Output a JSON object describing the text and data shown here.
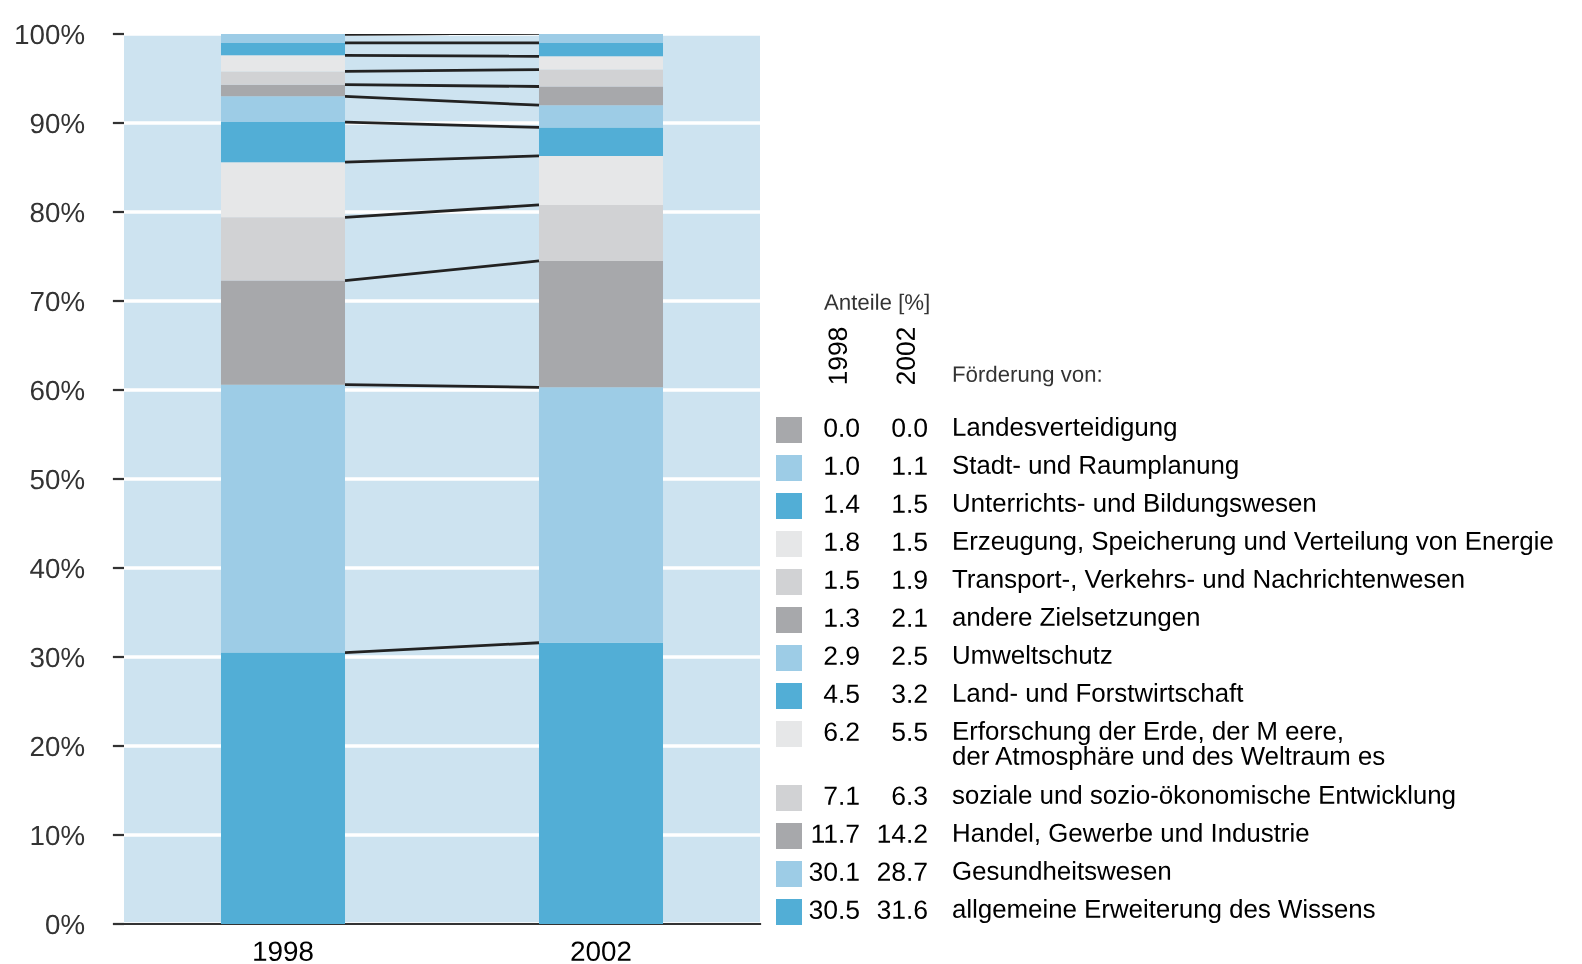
{
  "chart_data": [
    {
      "type": "bar",
      "stacked": true,
      "categories": [
        "1998",
        "2002"
      ],
      "ylim": [
        0,
        100
      ],
      "yticks": [
        {
          "value": 0,
          "label": "0%"
        },
        {
          "value": 10,
          "label": "10%"
        },
        {
          "value": 20,
          "label": "20%"
        },
        {
          "value": 30,
          "label": "30%"
        },
        {
          "value": 40,
          "label": "40%"
        },
        {
          "value": 50,
          "label": "50%"
        },
        {
          "value": 60,
          "label": "60%"
        },
        {
          "value": 70,
          "label": "70%"
        },
        {
          "value": 80,
          "label": "80%"
        },
        {
          "value": 90,
          "label": "90%"
        },
        {
          "value": 100,
          "label": "100%"
        }
      ],
      "grid": "y",
      "series": [
        {
          "color": "#52aed6",
          "values": [
            30.5,
            31.6
          ]
        },
        {
          "color": "#9dcce6",
          "values": [
            30.1,
            28.7
          ]
        },
        {
          "color": "#a7a8ab",
          "values": [
            11.7,
            14.2
          ]
        },
        {
          "color": "#d1d2d4",
          "values": [
            7.1,
            6.3
          ]
        },
        {
          "color": "#e6e7e8",
          "values": [
            6.2,
            5.5
          ]
        },
        {
          "color": "#52aed6",
          "values": [
            4.5,
            3.2
          ]
        },
        {
          "color": "#9dcce6",
          "values": [
            2.9,
            2.5
          ]
        },
        {
          "color": "#a7a8ab",
          "values": [
            1.3,
            2.1
          ]
        },
        {
          "color": "#d1d2d4",
          "values": [
            1.5,
            1.9
          ]
        },
        {
          "color": "#e6e7e8",
          "values": [
            1.8,
            1.5
          ]
        },
        {
          "color": "#52aed6",
          "values": [
            1.4,
            1.5
          ]
        },
        {
          "color": "#9dcce6",
          "values": [
            1.0,
            1.1
          ]
        },
        {
          "color": "#a7a8ab",
          "values": [
            0.0,
            0.0
          ]
        }
      ]
    },
    {
      "type": "other",
      "title": "Anteile [%]",
      "annotations": [
        "Förderung von:"
      ],
      "categories": [
        "Landesverteidigung",
        "Stadt- und Raumplanung",
        "Unterrichts- und Bildungswesen",
        "Erzeugung, Speicherung und Verteilung von Energie",
        "Transport-, Verkehrs- und Nachrichtenwesen",
        "andere Zielsetzungen",
        "Umweltschutz",
        "Land- und Forstwirtschaft",
        "Erforschung der Erde, der M eere,\nder Atmosphäre und des Weltraum es",
        "soziale und sozio-ökonomische Entwicklung",
        "Handel, Gewerbe und Industrie",
        "Gesundheitswesen",
        "allgemeine Erweiterung des Wissens"
      ],
      "colors": [
        "#a7a8ab",
        "#9dcce6",
        "#52aed6",
        "#e6e7e8",
        "#d1d2d4",
        "#a7a8ab",
        "#9dcce6",
        "#52aed6",
        "#e6e7e8",
        "#d1d2d4",
        "#a7a8ab",
        "#9dcce6",
        "#52aed6"
      ],
      "series": [
        {
          "name": "1998",
          "values": [
            0.0,
            1.0,
            1.4,
            1.8,
            1.5,
            1.3,
            2.9,
            4.5,
            6.2,
            7.1,
            11.7,
            30.1,
            30.5
          ],
          "value_labels": [
            "0.0",
            "1.0",
            "1.4",
            "1.8",
            "1.5",
            "1.3",
            "2.9",
            "4.5",
            "6.2",
            "7.1",
            "11.7",
            "30.1",
            "30.5"
          ]
        },
        {
          "name": "2002",
          "values": [
            0.0,
            1.1,
            1.5,
            1.5,
            1.9,
            2.1,
            2.5,
            3.2,
            5.5,
            6.3,
            14.2,
            28.7,
            31.6
          ],
          "value_labels": [
            "0.0",
            "1.1",
            "1.5",
            "1.5",
            "1.9",
            "2.1",
            "2.5",
            "3.2",
            "5.5",
            "6.3",
            "14.2",
            "28.7",
            "31.6"
          ]
        }
      ]
    }
  ]
}
